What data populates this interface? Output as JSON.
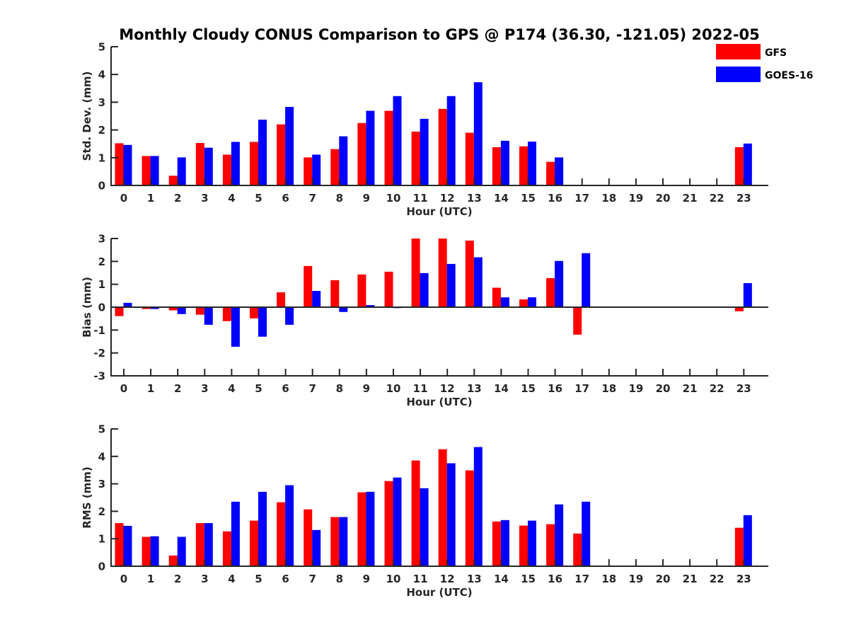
{
  "chart_data": {
    "type": "bar",
    "title": "Monthly Cloudy CONUS Comparison to GPS @ P174 (36.30, -121.05) 2022-05",
    "categories": [
      "0",
      "1",
      "2",
      "3",
      "4",
      "5",
      "6",
      "7",
      "8",
      "9",
      "10",
      "11",
      "12",
      "13",
      "14",
      "15",
      "16",
      "17",
      "18",
      "19",
      "20",
      "21",
      "22",
      "23"
    ],
    "legend": {
      "placement": "top-right",
      "entries": [
        {
          "name": "GFS",
          "color": "#ff0000"
        },
        {
          "name": "GOES-16",
          "color": "#0000ff"
        }
      ]
    },
    "panels": [
      {
        "id": "std",
        "xlabel": "Hour (UTC)",
        "ylabel": "Std. Dev. (mm)",
        "ylim": [
          0,
          5
        ],
        "yticks": [
          0,
          1,
          2,
          3,
          4,
          5
        ],
        "zero_line": false,
        "series": [
          {
            "name": "GFS",
            "color": "#ff0000",
            "values": [
              1.52,
              1.06,
              0.35,
              1.53,
              1.11,
              1.57,
              2.2,
              1.01,
              1.31,
              2.25,
              2.69,
              1.94,
              2.76,
              1.9,
              1.38,
              1.41,
              0.85,
              null,
              null,
              null,
              null,
              null,
              null,
              1.38
            ]
          },
          {
            "name": "GOES-16",
            "color": "#0000ff",
            "values": [
              1.46,
              1.06,
              1.01,
              1.36,
              1.57,
              2.37,
              2.83,
              1.11,
              1.77,
              2.69,
              3.22,
              2.4,
              3.22,
              3.72,
              1.61,
              1.58,
              1.01,
              null,
              null,
              null,
              null,
              null,
              null,
              1.51
            ]
          }
        ]
      },
      {
        "id": "bias",
        "xlabel": "Hour (UTC)",
        "ylabel": "Bias (mm)",
        "ylim": [
          -3,
          3
        ],
        "yticks": [
          -3,
          -2,
          -1,
          0,
          1,
          2,
          3
        ],
        "zero_line": true,
        "series": [
          {
            "name": "GFS",
            "color": "#ff0000",
            "values": [
              -0.39,
              -0.08,
              -0.14,
              -0.33,
              -0.61,
              -0.49,
              0.65,
              1.8,
              1.18,
              1.43,
              1.55,
              3.0,
              3.0,
              2.91,
              0.85,
              0.34,
              1.27,
              -1.2,
              null,
              null,
              null,
              null,
              null,
              -0.18
            ]
          },
          {
            "name": "GOES-16",
            "color": "#0000ff",
            "values": [
              0.19,
              -0.08,
              -0.3,
              -0.77,
              -1.73,
              -1.29,
              -0.77,
              0.71,
              -0.21,
              0.09,
              -0.04,
              1.49,
              1.89,
              2.18,
              0.43,
              0.43,
              2.02,
              2.36,
              null,
              null,
              null,
              null,
              null,
              1.05
            ]
          }
        ]
      },
      {
        "id": "rms",
        "xlabel": "Hour (UTC)",
        "ylabel": "RMS (mm)",
        "ylim": [
          0,
          5
        ],
        "yticks": [
          0,
          1,
          2,
          3,
          4,
          5
        ],
        "zero_line": false,
        "series": [
          {
            "name": "GFS",
            "color": "#ff0000",
            "values": [
              1.57,
              1.07,
              0.39,
              1.57,
              1.27,
              1.66,
              2.33,
              2.07,
              1.79,
              2.69,
              3.1,
              3.85,
              4.26,
              3.49,
              1.63,
              1.48,
              1.53,
              1.19,
              null,
              null,
              null,
              null,
              null,
              1.4
            ]
          },
          {
            "name": "GOES-16",
            "color": "#0000ff",
            "values": [
              1.47,
              1.09,
              1.07,
              1.57,
              2.35,
              2.71,
              2.95,
              1.32,
              1.79,
              2.71,
              3.23,
              2.84,
              3.75,
              4.34,
              1.68,
              1.66,
              2.25,
              2.35,
              null,
              null,
              null,
              null,
              null,
              1.86
            ]
          }
        ]
      }
    ]
  }
}
